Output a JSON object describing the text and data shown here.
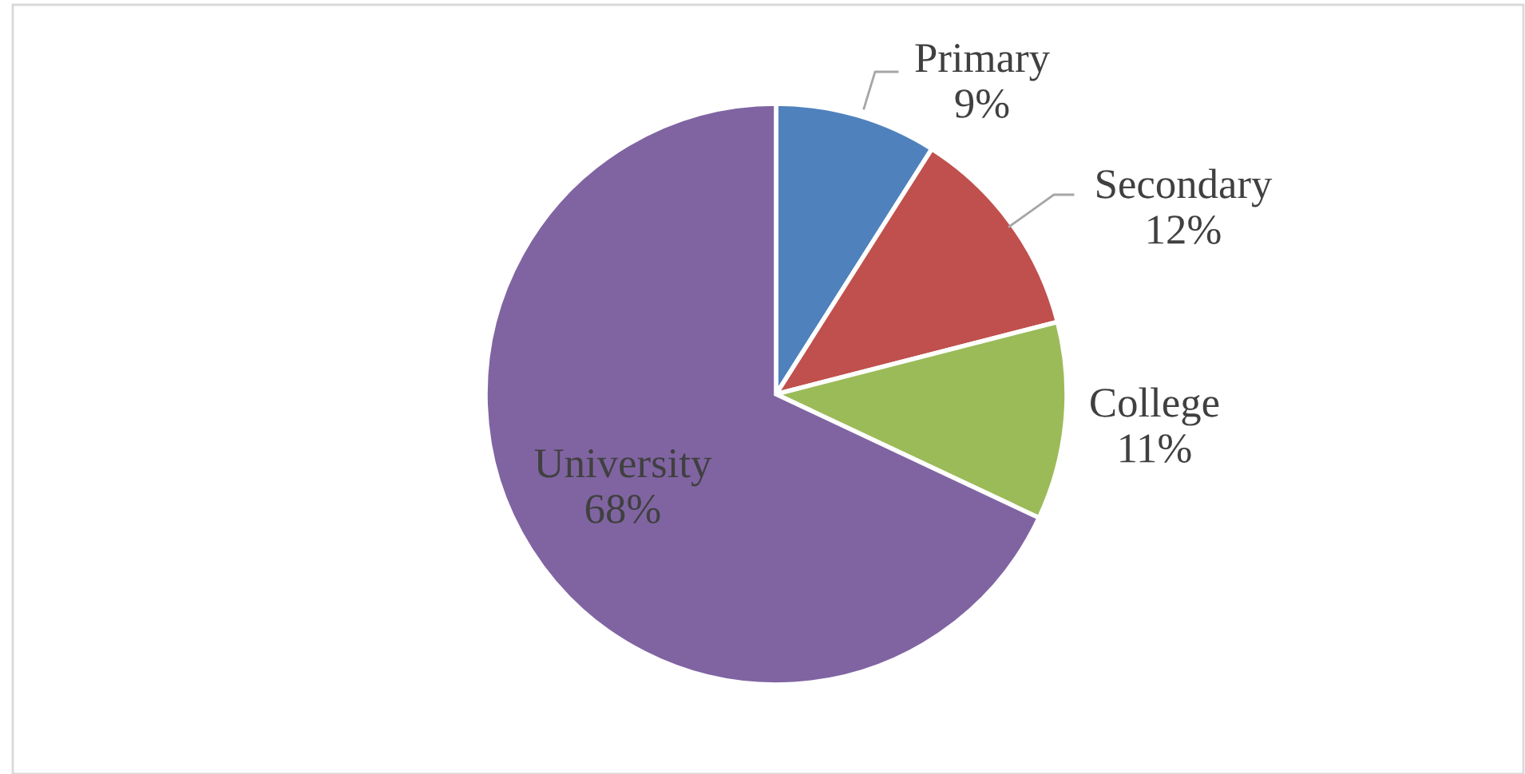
{
  "chart_data": {
    "type": "pie",
    "categories": [
      "Primary",
      "Secondary",
      "College",
      "University"
    ],
    "values": [
      9,
      12,
      11,
      68
    ],
    "value_labels": [
      "9%",
      "12%",
      "11%",
      "68%"
    ],
    "colors": [
      "#4f81bd",
      "#c0504d",
      "#9bbb59",
      "#8064a2"
    ]
  }
}
